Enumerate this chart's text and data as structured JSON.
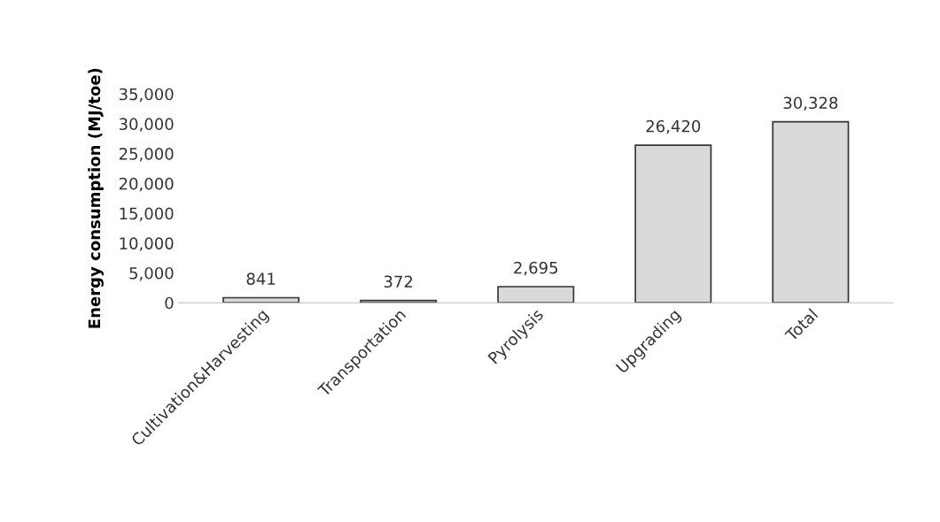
{
  "chart_data": {
    "type": "bar",
    "ylabel": "Energy consumption (MJ/toe)",
    "categories": [
      "Cultivation&Harvesting",
      "Transportation",
      "Pyrolysis",
      "Upgrading",
      "Total"
    ],
    "values": [
      841,
      372,
      2695,
      26420,
      30328
    ],
    "value_labels": [
      "841",
      "372",
      "2,695",
      "26,420",
      "30,328"
    ],
    "color": "#d9d9d9",
    "ylim": [
      0,
      35000
    ],
    "yticks": [
      {
        "value": 0,
        "label": "0"
      },
      {
        "value": 5000,
        "label": "5,000"
      },
      {
        "value": 10000,
        "label": "10,000"
      },
      {
        "value": 15000,
        "label": "15,000"
      },
      {
        "value": 20000,
        "label": "20,000"
      },
      {
        "value": 25000,
        "label": "25,000"
      },
      {
        "value": 30000,
        "label": "30,000"
      },
      {
        "value": 35000,
        "label": "35,000"
      }
    ],
    "grid": false,
    "legend": false
  }
}
